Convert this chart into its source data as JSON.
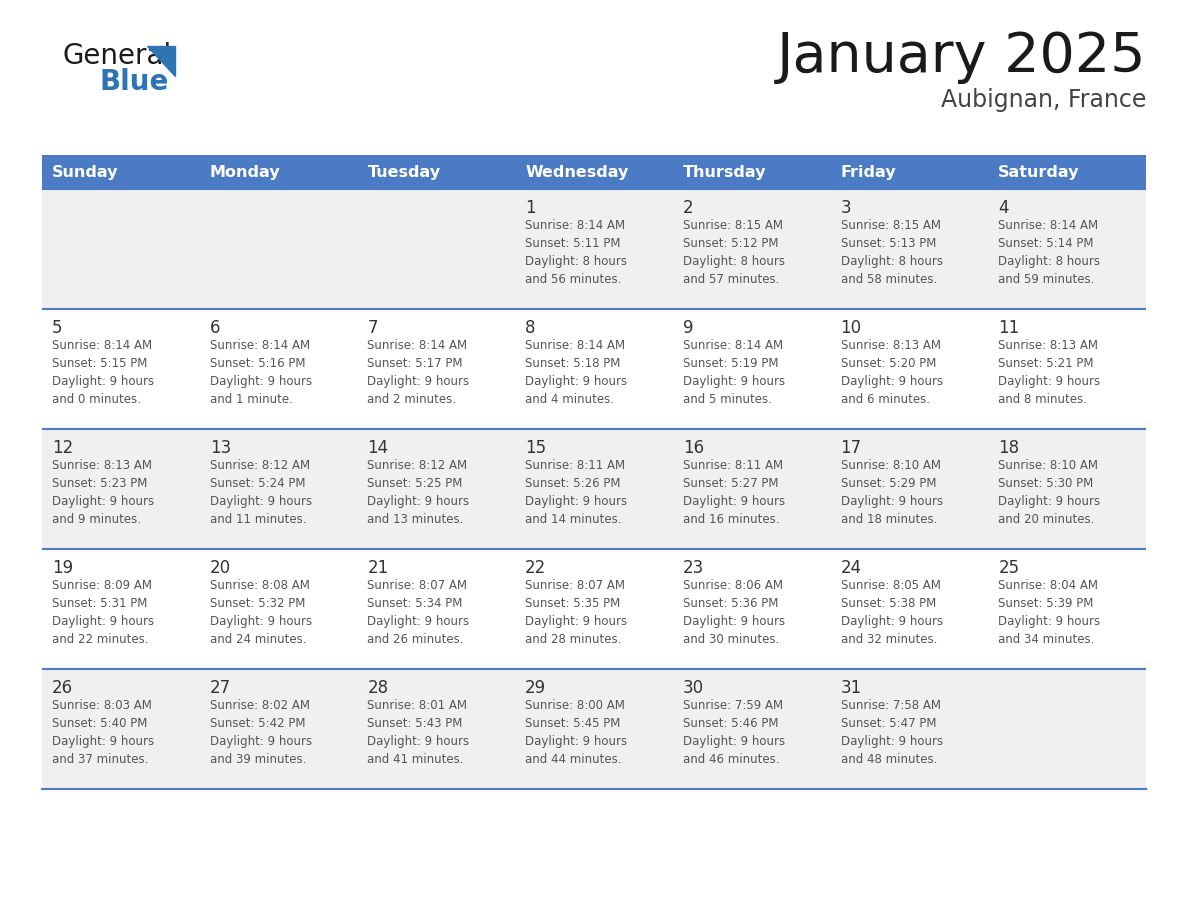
{
  "title": "January 2025",
  "subtitle": "Aubignan, France",
  "days_of_week": [
    "Sunday",
    "Monday",
    "Tuesday",
    "Wednesday",
    "Thursday",
    "Friday",
    "Saturday"
  ],
  "header_bg": "#4A7BC4",
  "header_text": "#FFFFFF",
  "cell_bg_odd": "#F0F0F0",
  "cell_bg_even": "#FFFFFF",
  "day_number_color": "#333333",
  "text_color": "#555555",
  "line_color": "#4A7BC4",
  "logo_general_color": "#1a1a1a",
  "logo_blue_color": "#2E75B6",
  "logo_triangle_color": "#2E75B6",
  "calendar_data": [
    [
      {
        "day": null,
        "info": null
      },
      {
        "day": null,
        "info": null
      },
      {
        "day": null,
        "info": null
      },
      {
        "day": 1,
        "info": "Sunrise: 8:14 AM\nSunset: 5:11 PM\nDaylight: 8 hours\nand 56 minutes."
      },
      {
        "day": 2,
        "info": "Sunrise: 8:15 AM\nSunset: 5:12 PM\nDaylight: 8 hours\nand 57 minutes."
      },
      {
        "day": 3,
        "info": "Sunrise: 8:15 AM\nSunset: 5:13 PM\nDaylight: 8 hours\nand 58 minutes."
      },
      {
        "day": 4,
        "info": "Sunrise: 8:14 AM\nSunset: 5:14 PM\nDaylight: 8 hours\nand 59 minutes."
      }
    ],
    [
      {
        "day": 5,
        "info": "Sunrise: 8:14 AM\nSunset: 5:15 PM\nDaylight: 9 hours\nand 0 minutes."
      },
      {
        "day": 6,
        "info": "Sunrise: 8:14 AM\nSunset: 5:16 PM\nDaylight: 9 hours\nand 1 minute."
      },
      {
        "day": 7,
        "info": "Sunrise: 8:14 AM\nSunset: 5:17 PM\nDaylight: 9 hours\nand 2 minutes."
      },
      {
        "day": 8,
        "info": "Sunrise: 8:14 AM\nSunset: 5:18 PM\nDaylight: 9 hours\nand 4 minutes."
      },
      {
        "day": 9,
        "info": "Sunrise: 8:14 AM\nSunset: 5:19 PM\nDaylight: 9 hours\nand 5 minutes."
      },
      {
        "day": 10,
        "info": "Sunrise: 8:13 AM\nSunset: 5:20 PM\nDaylight: 9 hours\nand 6 minutes."
      },
      {
        "day": 11,
        "info": "Sunrise: 8:13 AM\nSunset: 5:21 PM\nDaylight: 9 hours\nand 8 minutes."
      }
    ],
    [
      {
        "day": 12,
        "info": "Sunrise: 8:13 AM\nSunset: 5:23 PM\nDaylight: 9 hours\nand 9 minutes."
      },
      {
        "day": 13,
        "info": "Sunrise: 8:12 AM\nSunset: 5:24 PM\nDaylight: 9 hours\nand 11 minutes."
      },
      {
        "day": 14,
        "info": "Sunrise: 8:12 AM\nSunset: 5:25 PM\nDaylight: 9 hours\nand 13 minutes."
      },
      {
        "day": 15,
        "info": "Sunrise: 8:11 AM\nSunset: 5:26 PM\nDaylight: 9 hours\nand 14 minutes."
      },
      {
        "day": 16,
        "info": "Sunrise: 8:11 AM\nSunset: 5:27 PM\nDaylight: 9 hours\nand 16 minutes."
      },
      {
        "day": 17,
        "info": "Sunrise: 8:10 AM\nSunset: 5:29 PM\nDaylight: 9 hours\nand 18 minutes."
      },
      {
        "day": 18,
        "info": "Sunrise: 8:10 AM\nSunset: 5:30 PM\nDaylight: 9 hours\nand 20 minutes."
      }
    ],
    [
      {
        "day": 19,
        "info": "Sunrise: 8:09 AM\nSunset: 5:31 PM\nDaylight: 9 hours\nand 22 minutes."
      },
      {
        "day": 20,
        "info": "Sunrise: 8:08 AM\nSunset: 5:32 PM\nDaylight: 9 hours\nand 24 minutes."
      },
      {
        "day": 21,
        "info": "Sunrise: 8:07 AM\nSunset: 5:34 PM\nDaylight: 9 hours\nand 26 minutes."
      },
      {
        "day": 22,
        "info": "Sunrise: 8:07 AM\nSunset: 5:35 PM\nDaylight: 9 hours\nand 28 minutes."
      },
      {
        "day": 23,
        "info": "Sunrise: 8:06 AM\nSunset: 5:36 PM\nDaylight: 9 hours\nand 30 minutes."
      },
      {
        "day": 24,
        "info": "Sunrise: 8:05 AM\nSunset: 5:38 PM\nDaylight: 9 hours\nand 32 minutes."
      },
      {
        "day": 25,
        "info": "Sunrise: 8:04 AM\nSunset: 5:39 PM\nDaylight: 9 hours\nand 34 minutes."
      }
    ],
    [
      {
        "day": 26,
        "info": "Sunrise: 8:03 AM\nSunset: 5:40 PM\nDaylight: 9 hours\nand 37 minutes."
      },
      {
        "day": 27,
        "info": "Sunrise: 8:02 AM\nSunset: 5:42 PM\nDaylight: 9 hours\nand 39 minutes."
      },
      {
        "day": 28,
        "info": "Sunrise: 8:01 AM\nSunset: 5:43 PM\nDaylight: 9 hours\nand 41 minutes."
      },
      {
        "day": 29,
        "info": "Sunrise: 8:00 AM\nSunset: 5:45 PM\nDaylight: 9 hours\nand 44 minutes."
      },
      {
        "day": 30,
        "info": "Sunrise: 7:59 AM\nSunset: 5:46 PM\nDaylight: 9 hours\nand 46 minutes."
      },
      {
        "day": 31,
        "info": "Sunrise: 7:58 AM\nSunset: 5:47 PM\nDaylight: 9 hours\nand 48 minutes."
      },
      {
        "day": null,
        "info": null
      }
    ]
  ]
}
